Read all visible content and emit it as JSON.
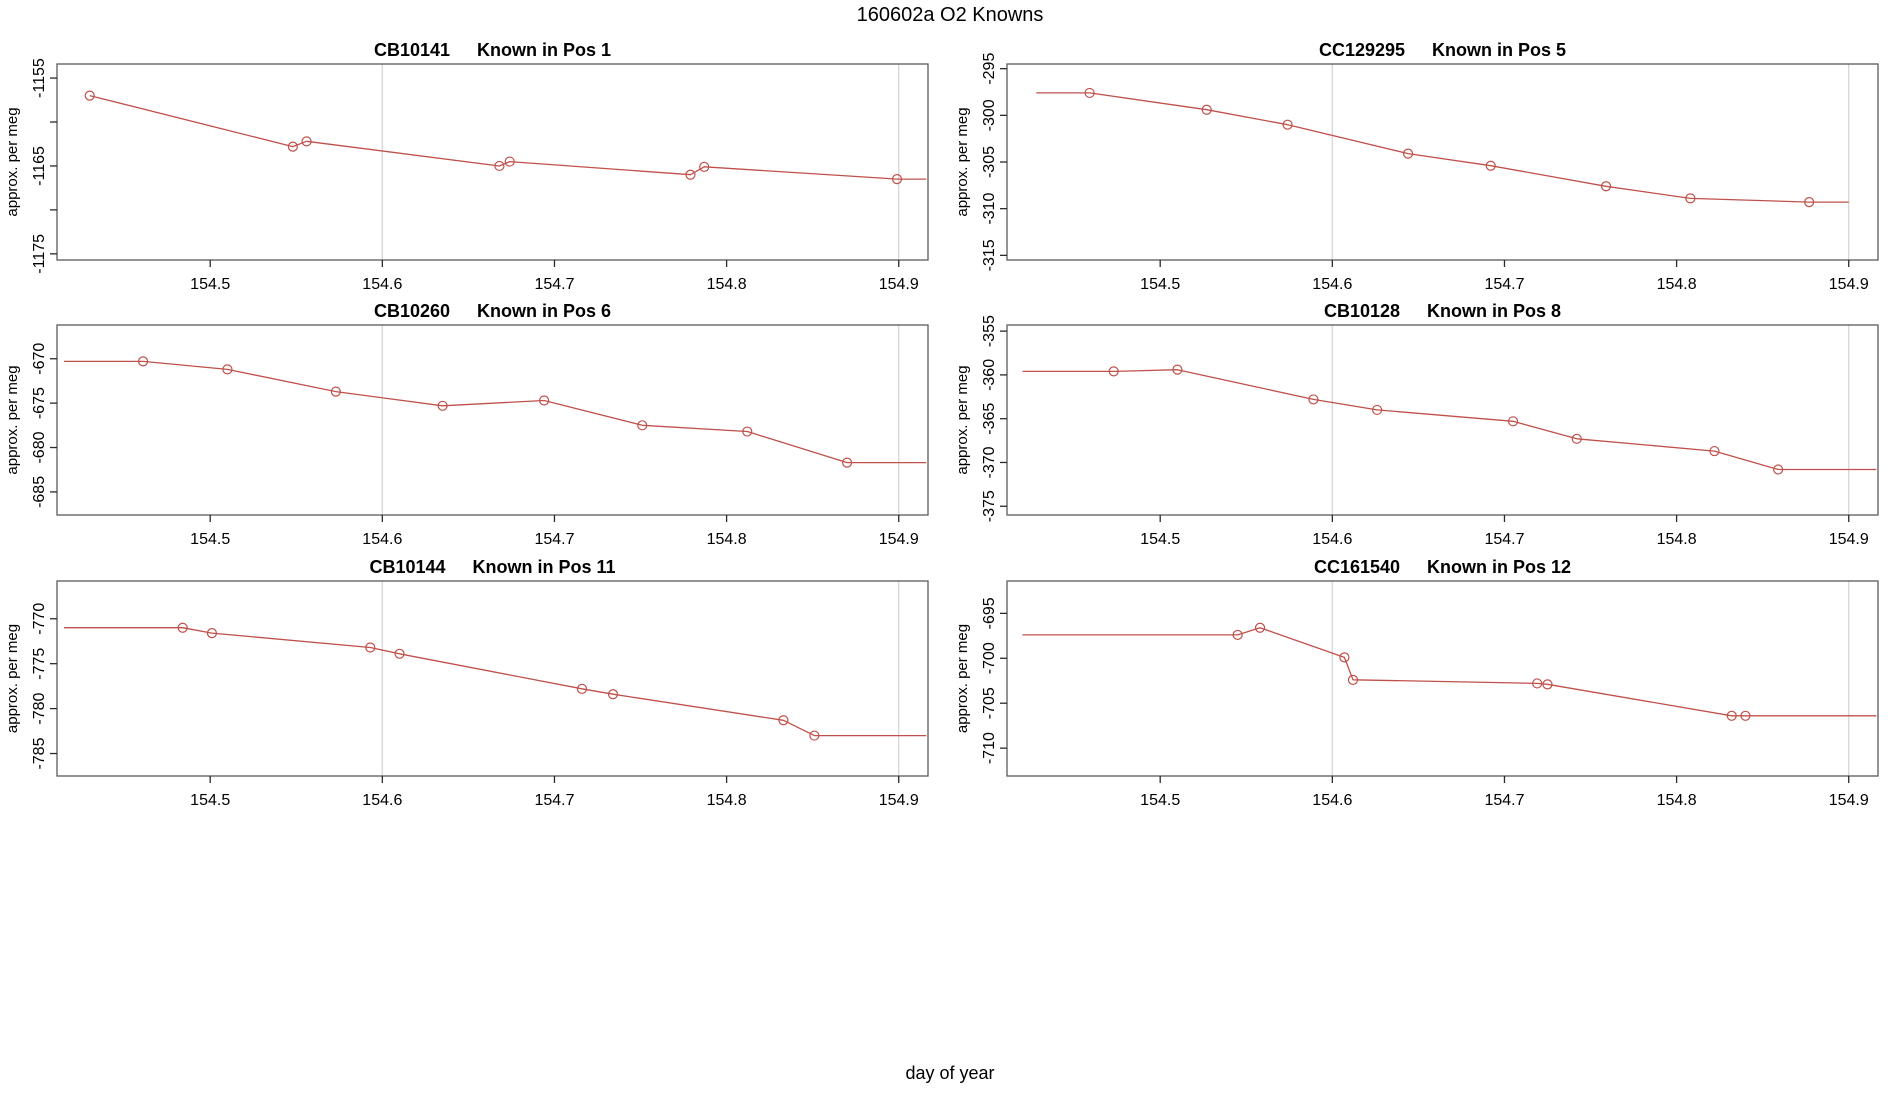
{
  "main_title": "160602a   O2 Knowns",
  "xlabel": "day of year",
  "line_color": "#c0504a",
  "grid_color": "#d8d8d8",
  "box_color": "#5a5a5a",
  "tick_color": "#2a2a2a",
  "text_color": "#000000",
  "chart_data": [
    {
      "type": "line",
      "id": "CB10141",
      "pos_label": "Known in Pos 1",
      "ylabel": "approx. per meg",
      "xlim": [
        154.411,
        154.917
      ],
      "ylim_top": -1153.4,
      "ylim_bottom": -1175.7,
      "x_ticks": [
        {
          "v": 154.5,
          "label": "154.5"
        },
        {
          "v": 154.6,
          "label": "154.6"
        },
        {
          "v": 154.7,
          "label": "154.7"
        },
        {
          "v": 154.8,
          "label": "154.8"
        },
        {
          "v": 154.9,
          "label": "154.9"
        }
      ],
      "y_ticks": [
        {
          "v": -1155,
          "label": "-1155"
        },
        {
          "v": -1160,
          "label": ""
        },
        {
          "v": -1165,
          "label": "-1165"
        },
        {
          "v": -1170,
          "label": ""
        },
        {
          "v": -1175,
          "label": "-1175"
        }
      ],
      "grid_x": [
        154.6,
        154.9
      ],
      "lead_x": null,
      "points": [
        [
          154.43,
          -1157.0
        ],
        [
          154.548,
          -1162.8
        ],
        [
          154.556,
          -1162.2
        ],
        [
          154.668,
          -1165.0
        ],
        [
          154.674,
          -1164.5
        ],
        [
          154.779,
          -1166.0
        ],
        [
          154.787,
          -1165.1
        ],
        [
          154.899,
          -1166.5
        ]
      ],
      "tail_x": 154.916
    },
    {
      "type": "line",
      "id": "CC129295",
      "pos_label": "Known in Pos 5",
      "ylabel": "approx. per meg",
      "xlim": [
        154.411,
        154.917
      ],
      "ylim_top": -294.5,
      "ylim_bottom": -315.5,
      "x_ticks": [
        {
          "v": 154.5,
          "label": "154.5"
        },
        {
          "v": 154.6,
          "label": "154.6"
        },
        {
          "v": 154.7,
          "label": "154.7"
        },
        {
          "v": 154.8,
          "label": "154.8"
        },
        {
          "v": 154.9,
          "label": "154.9"
        }
      ],
      "y_ticks": [
        {
          "v": -295,
          "label": "-295"
        },
        {
          "v": -300,
          "label": "-300"
        },
        {
          "v": -305,
          "label": "-305"
        },
        {
          "v": -310,
          "label": "-310"
        },
        {
          "v": -315,
          "label": "-315"
        }
      ],
      "grid_x": [
        154.6,
        154.9
      ],
      "lead_x": 154.428,
      "points": [
        [
          154.459,
          -297.6
        ],
        [
          154.527,
          -299.4
        ],
        [
          154.574,
          -301.0
        ],
        [
          154.644,
          -304.1
        ],
        [
          154.692,
          -305.4
        ],
        [
          154.759,
          -307.6
        ],
        [
          154.808,
          -308.9
        ],
        [
          154.877,
          -309.3
        ]
      ],
      "tail_x": 154.9
    },
    {
      "type": "line",
      "id": "CB10260",
      "pos_label": "Known in Pos 6",
      "ylabel": "approx. per meg",
      "xlim": [
        154.411,
        154.917
      ],
      "ylim_top": -666.2,
      "ylim_bottom": -687.6,
      "x_ticks": [
        {
          "v": 154.5,
          "label": "154.5"
        },
        {
          "v": 154.6,
          "label": "154.6"
        },
        {
          "v": 154.7,
          "label": "154.7"
        },
        {
          "v": 154.8,
          "label": "154.8"
        },
        {
          "v": 154.9,
          "label": "154.9"
        }
      ],
      "y_ticks": [
        {
          "v": -670,
          "label": "-670"
        },
        {
          "v": -675,
          "label": "-675"
        },
        {
          "v": -680,
          "label": "-680"
        },
        {
          "v": -685,
          "label": "-685"
        }
      ],
      "grid_x": [
        154.6,
        154.9
      ],
      "lead_x": 154.415,
      "points": [
        [
          154.461,
          -670.3
        ],
        [
          154.51,
          -671.2
        ],
        [
          154.573,
          -673.7
        ],
        [
          154.635,
          -675.3
        ],
        [
          154.694,
          -674.7
        ],
        [
          154.751,
          -677.5
        ],
        [
          154.812,
          -678.2
        ],
        [
          154.87,
          -681.7
        ]
      ],
      "tail_x": 154.916
    },
    {
      "type": "line",
      "id": "CB10128",
      "pos_label": "Known in Pos 8",
      "ylabel": "approx. per meg",
      "xlim": [
        154.411,
        154.917
      ],
      "ylim_top": -354.3,
      "ylim_bottom": -376.0,
      "x_ticks": [
        {
          "v": 154.5,
          "label": "154.5"
        },
        {
          "v": 154.6,
          "label": "154.6"
        },
        {
          "v": 154.7,
          "label": "154.7"
        },
        {
          "v": 154.8,
          "label": "154.8"
        },
        {
          "v": 154.9,
          "label": "154.9"
        }
      ],
      "y_ticks": [
        {
          "v": -355,
          "label": "-355"
        },
        {
          "v": -360,
          "label": "-360"
        },
        {
          "v": -365,
          "label": "-365"
        },
        {
          "v": -370,
          "label": "-370"
        },
        {
          "v": -375,
          "label": "-375"
        }
      ],
      "grid_x": [
        154.6,
        154.9
      ],
      "lead_x": 154.42,
      "points": [
        [
          154.473,
          -359.6
        ],
        [
          154.51,
          -359.4
        ],
        [
          154.589,
          -362.8
        ],
        [
          154.626,
          -364.0
        ],
        [
          154.705,
          -365.3
        ],
        [
          154.742,
          -367.3
        ],
        [
          154.822,
          -368.7
        ],
        [
          154.859,
          -370.8
        ]
      ],
      "tail_x": 154.916
    },
    {
      "type": "line",
      "id": "CB10144",
      "pos_label": "Known in Pos 11",
      "ylabel": "approx. per meg",
      "xlim": [
        154.411,
        154.917
      ],
      "ylim_top": -765.8,
      "ylim_bottom": -787.5,
      "x_ticks": [
        {
          "v": 154.5,
          "label": "154.5"
        },
        {
          "v": 154.6,
          "label": "154.6"
        },
        {
          "v": 154.7,
          "label": "154.7"
        },
        {
          "v": 154.8,
          "label": "154.8"
        },
        {
          "v": 154.9,
          "label": "154.9"
        }
      ],
      "y_ticks": [
        {
          "v": -770,
          "label": "-770"
        },
        {
          "v": -775,
          "label": "-775"
        },
        {
          "v": -780,
          "label": "-780"
        },
        {
          "v": -785,
          "label": "-785"
        }
      ],
      "grid_x": [
        154.6,
        154.9
      ],
      "lead_x": 154.415,
      "points": [
        [
          154.484,
          -771.0
        ],
        [
          154.501,
          -771.6
        ],
        [
          154.593,
          -773.2
        ],
        [
          154.61,
          -773.9
        ],
        [
          154.716,
          -777.8
        ],
        [
          154.734,
          -778.4
        ],
        [
          154.833,
          -781.3
        ],
        [
          154.851,
          -783.0
        ]
      ],
      "tail_x": 154.916
    },
    {
      "type": "line",
      "id": "CC161540",
      "pos_label": "Known in Pos 12",
      "ylabel": "approx. per meg",
      "xlim": [
        154.411,
        154.917
      ],
      "ylim_top": -691.4,
      "ylim_bottom": -713.1,
      "x_ticks": [
        {
          "v": 154.5,
          "label": "154.5"
        },
        {
          "v": 154.6,
          "label": "154.6"
        },
        {
          "v": 154.7,
          "label": "154.7"
        },
        {
          "v": 154.8,
          "label": "154.8"
        },
        {
          "v": 154.9,
          "label": "154.9"
        }
      ],
      "y_ticks": [
        {
          "v": -695,
          "label": "-695"
        },
        {
          "v": -700,
          "label": "-700"
        },
        {
          "v": -705,
          "label": "-705"
        },
        {
          "v": -710,
          "label": "-710"
        }
      ],
      "grid_x": [
        154.6,
        154.9
      ],
      "lead_x": 154.42,
      "points": [
        [
          154.545,
          -697.4
        ],
        [
          154.558,
          -696.6
        ],
        [
          154.607,
          -699.9
        ],
        [
          154.612,
          -702.4
        ],
        [
          154.719,
          -702.8
        ],
        [
          154.725,
          -702.9
        ],
        [
          154.832,
          -706.4
        ],
        [
          154.84,
          -706.4
        ]
      ],
      "tail_x": 154.916
    }
  ]
}
